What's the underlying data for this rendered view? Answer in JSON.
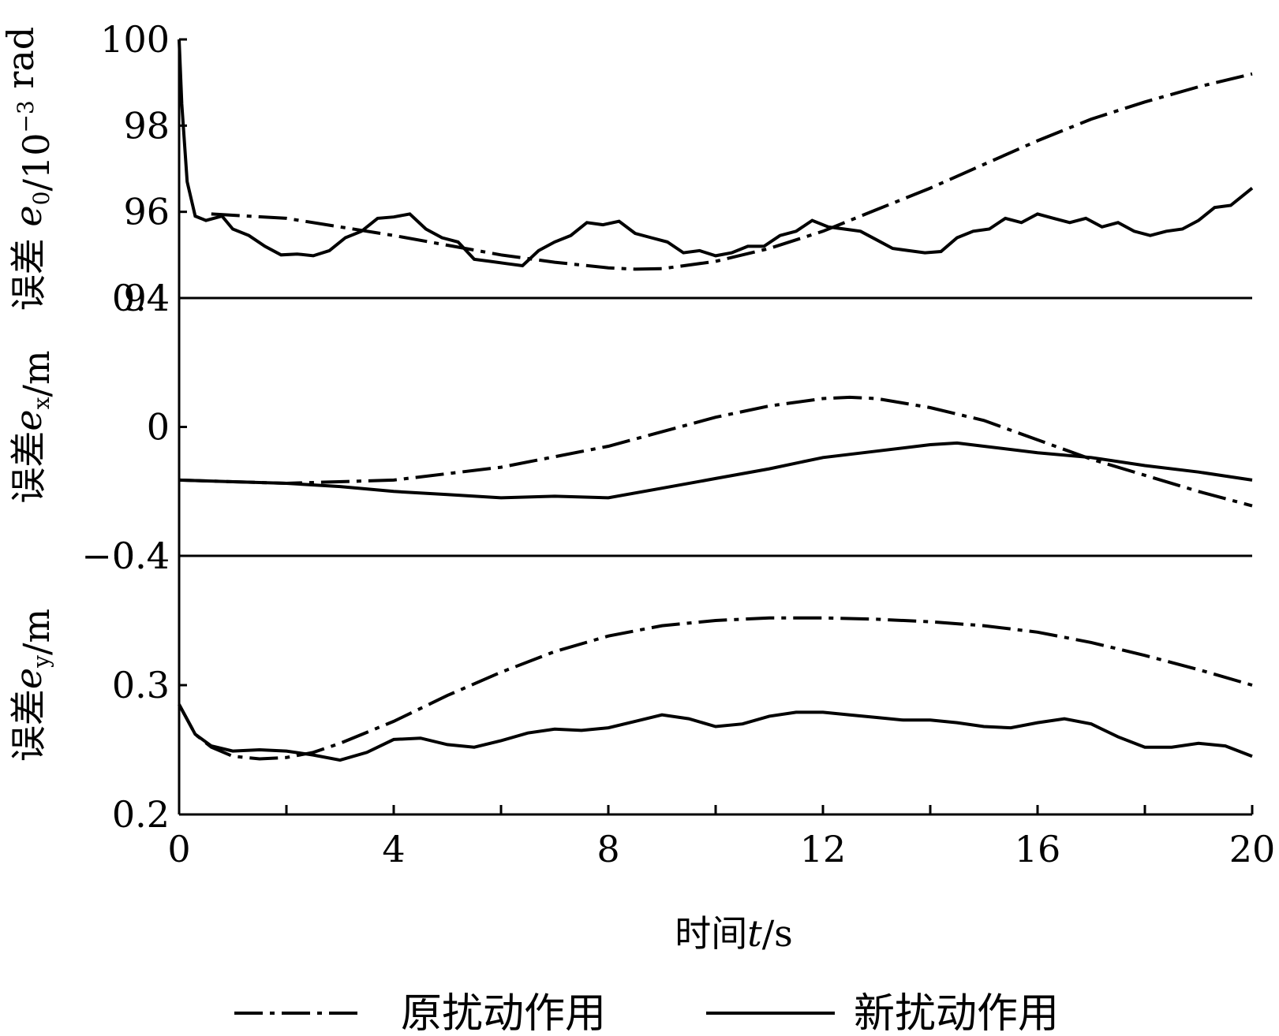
{
  "chart_data": {
    "type": "line",
    "x_axis": {
      "label_prefix": "时间",
      "label_var": "t",
      "label_unit": "/s",
      "range": [
        0,
        20
      ],
      "ticks": [
        "0",
        "4",
        "8",
        "12",
        "16",
        "20"
      ],
      "tick_values": [
        0,
        4,
        8,
        12,
        16,
        20
      ],
      "minor_tick_values": [
        2,
        6,
        10,
        14,
        18
      ]
    },
    "legend": [
      {
        "key": "orig",
        "label": "原扰动作用"
      },
      {
        "key": "new",
        "label": "新扰动作用"
      }
    ],
    "panels": [
      {
        "id": "e0",
        "ylabel_prefix": "误差 ",
        "ylabel_var": "e",
        "ylabel_sub": "0",
        "ylabel_unit": "/10",
        "ylabel_exp": "−3",
        "ylabel_unit2": " rad",
        "ylim": [
          94,
          100
        ],
        "ticks": [
          "94",
          "96",
          "98",
          "100"
        ],
        "tick_values": [
          94,
          96,
          98,
          100
        ],
        "series": {
          "orig": {
            "x": [
              0.6,
              2,
              4,
              6,
              7,
              8,
              8.5,
              9,
              10,
              11,
              12,
              13,
              14,
              15,
              16,
              17,
              18,
              19,
              20
            ],
            "y": [
              95.95,
              95.85,
              95.45,
              95.0,
              94.83,
              94.7,
              94.67,
              94.68,
              94.85,
              95.15,
              95.55,
              96.05,
              96.55,
              97.1,
              97.65,
              98.15,
              98.55,
              98.9,
              99.2
            ]
          },
          "new": {
            "x": [
              0.0,
              0.05,
              0.15,
              0.3,
              0.5,
              0.8,
              1.0,
              1.3,
              1.6,
              1.9,
              2.2,
              2.5,
              2.8,
              3.1,
              3.4,
              3.7,
              4.0,
              4.3,
              4.6,
              4.9,
              5.2,
              5.5,
              5.8,
              6.1,
              6.4,
              6.7,
              7.0,
              7.3,
              7.6,
              7.9,
              8.2,
              8.5,
              8.8,
              9.1,
              9.4,
              9.7,
              10.0,
              10.3,
              10.6,
              10.9,
              11.2,
              11.5,
              11.8,
              12.1,
              12.4,
              12.7,
              13.0,
              13.3,
              13.6,
              13.9,
              14.2,
              14.5,
              14.8,
              15.1,
              15.4,
              15.7,
              16.0,
              16.3,
              16.6,
              16.9,
              17.2,
              17.5,
              17.8,
              18.1,
              18.4,
              18.7,
              19.0,
              19.3,
              19.6,
              19.9,
              20.0
            ],
            "y": [
              100.0,
              98.5,
              96.7,
              95.9,
              95.8,
              95.9,
              95.6,
              95.45,
              95.2,
              95.0,
              95.02,
              94.98,
              95.1,
              95.4,
              95.55,
              95.85,
              95.88,
              95.95,
              95.6,
              95.4,
              95.3,
              94.9,
              94.85,
              94.8,
              94.75,
              95.1,
              95.3,
              95.45,
              95.75,
              95.7,
              95.78,
              95.5,
              95.4,
              95.3,
              95.05,
              95.1,
              94.98,
              95.05,
              95.2,
              95.2,
              95.45,
              95.55,
              95.8,
              95.65,
              95.6,
              95.55,
              95.35,
              95.15,
              95.1,
              95.05,
              95.08,
              95.4,
              95.55,
              95.6,
              95.85,
              95.75,
              95.95,
              95.85,
              95.75,
              95.85,
              95.65,
              95.75,
              95.55,
              95.45,
              95.55,
              95.6,
              95.8,
              96.1,
              96.15,
              96.45,
              96.55
            ]
          }
        }
      },
      {
        "id": "ex",
        "ylabel_prefix": "误差",
        "ylabel_var": "e",
        "ylabel_sub": "x",
        "ylabel_unit": "/m",
        "ylim": [
          -0.4,
          0.4
        ],
        "ticks": [
          "−0.4",
          "0",
          "0.4"
        ],
        "tick_values": [
          -0.4,
          0,
          0.4
        ],
        "series": {
          "orig": {
            "x": [
              0,
              2,
              4,
              6,
              8,
              10,
              11,
              12,
              12.5,
              13,
              14,
              15,
              16,
              17,
              18,
              19,
              20
            ],
            "y": [
              -0.165,
              -0.175,
              -0.165,
              -0.125,
              -0.06,
              0.03,
              0.065,
              0.088,
              0.092,
              0.088,
              0.06,
              0.02,
              -0.04,
              -0.1,
              -0.15,
              -0.2,
              -0.245
            ]
          },
          "new": {
            "x": [
              0,
              1,
              2,
              3,
              4,
              5,
              6,
              7,
              8,
              9,
              10,
              11,
              12,
              13,
              14,
              14.5,
              15,
              16,
              17,
              18,
              19,
              20
            ],
            "y": [
              -0.165,
              -0.17,
              -0.175,
              -0.185,
              -0.2,
              -0.21,
              -0.22,
              -0.215,
              -0.22,
              -0.19,
              -0.16,
              -0.13,
              -0.095,
              -0.075,
              -0.055,
              -0.05,
              -0.06,
              -0.08,
              -0.095,
              -0.12,
              -0.14,
              -0.165
            ]
          }
        }
      },
      {
        "id": "ey",
        "ylabel_prefix": "误差",
        "ylabel_var": "e",
        "ylabel_sub": "y",
        "ylabel_unit": "/m",
        "ylim": [
          0.2,
          0.4
        ],
        "ticks": [
          "0.2",
          "0.3",
          "0.4"
        ],
        "tick_values": [
          0.2,
          0.3,
          0.4
        ],
        "series": {
          "orig": {
            "x": [
              0.0,
              0.3,
              0.6,
              1.0,
              1.5,
              2.0,
              2.5,
              3,
              4,
              5,
              6,
              7,
              8,
              9,
              10,
              11,
              12,
              13,
              14,
              15,
              16,
              17,
              18,
              19,
              20
            ],
            "y": [
              0.285,
              0.262,
              0.252,
              0.245,
              0.243,
              0.244,
              0.248,
              0.255,
              0.272,
              0.292,
              0.31,
              0.326,
              0.338,
              0.346,
              0.35,
              0.352,
              0.352,
              0.351,
              0.349,
              0.346,
              0.341,
              0.333,
              0.323,
              0.312,
              0.3
            ]
          },
          "new": {
            "x": [
              0.0,
              0.3,
              0.6,
              1.0,
              1.5,
              2.0,
              2.5,
              3.0,
              3.5,
              4.0,
              4.5,
              5.0,
              5.5,
              6.0,
              6.5,
              7.0,
              7.5,
              8.0,
              8.5,
              9.0,
              9.5,
              10.0,
              10.5,
              11.0,
              11.5,
              12.0,
              12.5,
              13.0,
              13.5,
              14.0,
              14.5,
              15.0,
              15.5,
              16.0,
              16.5,
              17.0,
              17.5,
              18.0,
              18.5,
              19.0,
              19.5,
              20.0
            ],
            "y": [
              0.285,
              0.262,
              0.253,
              0.249,
              0.25,
              0.249,
              0.246,
              0.242,
              0.248,
              0.258,
              0.259,
              0.254,
              0.252,
              0.257,
              0.263,
              0.266,
              0.265,
              0.267,
              0.272,
              0.277,
              0.274,
              0.268,
              0.27,
              0.276,
              0.279,
              0.279,
              0.277,
              0.275,
              0.273,
              0.273,
              0.271,
              0.268,
              0.267,
              0.271,
              0.274,
              0.27,
              0.26,
              0.252,
              0.252,
              0.255,
              0.253,
              0.245
            ]
          }
        }
      }
    ]
  }
}
